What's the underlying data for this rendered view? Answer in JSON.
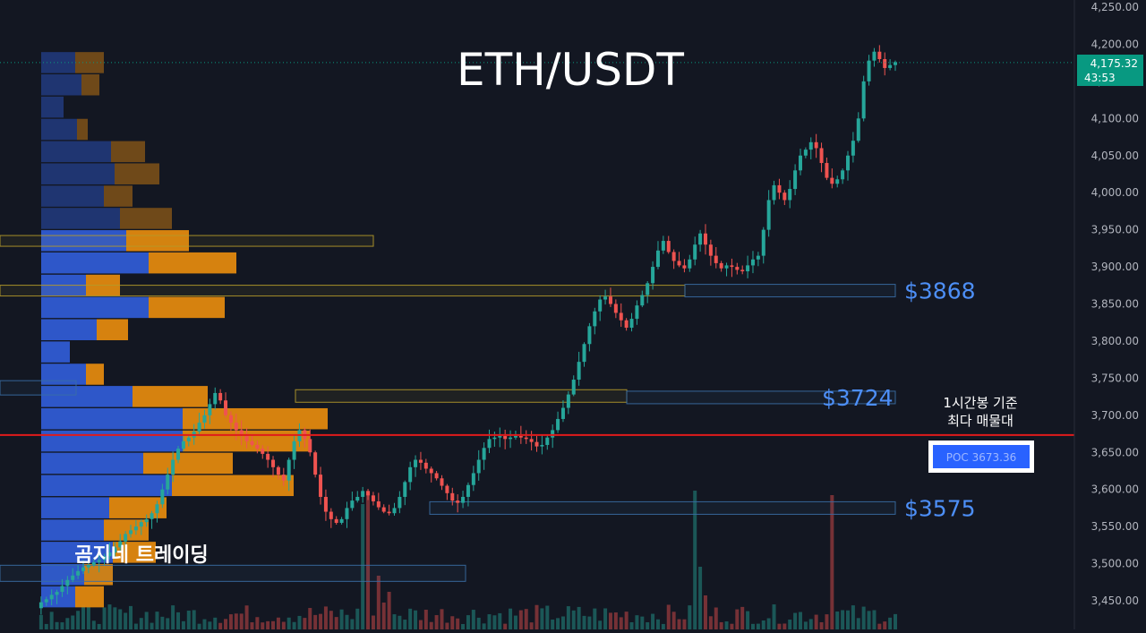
{
  "chart_data": {
    "type": "candlestick",
    "title": "ETH/USDT",
    "watermark": "곰지네 트레이딩",
    "y_ticks": [
      "4,250.00",
      "4,200.00",
      "4,150.00",
      "4,100.00",
      "4,050.00",
      "4,000.00",
      "3,950.00",
      "3,900.00",
      "3,850.00",
      "3,800.00",
      "3,750.00",
      "3,700.00",
      "3,650.00",
      "3,600.00",
      "3,550.00",
      "3,500.00",
      "3,450.00"
    ],
    "y_tick_values": [
      4250,
      4200,
      4150,
      4100,
      4050,
      4000,
      3950,
      3900,
      3850,
      3800,
      3750,
      3700,
      3650,
      3600,
      3550,
      3500,
      3450
    ],
    "ylim": [
      3435,
      4268
    ],
    "current_price": {
      "value": 4175.32,
      "label": "4,175.32",
      "countdown": "43:53"
    },
    "poc": {
      "value": 3673.36,
      "label": "POC  3673.36",
      "note_line1": "1시간봉 기준",
      "note_line2": "최다 매물대"
    },
    "levels": [
      {
        "label": "$3868",
        "value": 3868
      },
      {
        "label": "$3724",
        "value": 3724
      },
      {
        "label": "$3575",
        "value": 3575
      }
    ],
    "price_path": [
      3440,
      3448,
      3452,
      3458,
      3462,
      3470,
      3478,
      3484,
      3490,
      3495,
      3498,
      3502,
      3505,
      3510,
      3515,
      3522,
      3530,
      3540,
      3545,
      3550,
      3556,
      3560,
      3568,
      3580,
      3600,
      3620,
      3640,
      3655,
      3665,
      3670,
      3678,
      3690,
      3700,
      3715,
      3730,
      3720,
      3700,
      3690,
      3680,
      3672,
      3665,
      3660,
      3655,
      3648,
      3640,
      3630,
      3620,
      3612,
      3640,
      3665,
      3680,
      3668,
      3650,
      3620,
      3590,
      3570,
      3560,
      3555,
      3560,
      3575,
      3585,
      3590,
      3598,
      3592,
      3584,
      3576,
      3570,
      3568,
      3575,
      3590,
      3610,
      3630,
      3640,
      3636,
      3628,
      3622,
      3615,
      3605,
      3595,
      3585,
      3582,
      3590,
      3606,
      3622,
      3640,
      3656,
      3668,
      3670,
      3672,
      3668,
      3670,
      3672,
      3670,
      3668,
      3664,
      3658,
      3660,
      3670,
      3680,
      3695,
      3710,
      3728,
      3748,
      3772,
      3796,
      3820,
      3840,
      3856,
      3860,
      3850,
      3838,
      3828,
      3818,
      3830,
      3848,
      3862,
      3878,
      3900,
      3922,
      3935,
      3920,
      3908,
      3902,
      3898,
      3910,
      3930,
      3945,
      3930,
      3915,
      3905,
      3898,
      3902,
      3900,
      3896,
      3894,
      3902,
      3910,
      3915,
      3950,
      3990,
      4010,
      4000,
      3990,
      4005,
      4030,
      4050,
      4058,
      4068,
      4060,
      4040,
      4020,
      4012,
      4018,
      4030,
      4050,
      4070,
      4100,
      4150,
      4178,
      4190,
      4180,
      4168,
      4172,
      4176
    ],
    "volume_profile": [
      {
        "price": 4175,
        "buy": 38,
        "sell": 32
      },
      {
        "price": 4145,
        "buy": 45,
        "sell": 20
      },
      {
        "price": 4115,
        "buy": 25,
        "sell": 0
      },
      {
        "price": 4085,
        "buy": 40,
        "sell": 12
      },
      {
        "price": 4055,
        "buy": 78,
        "sell": 38
      },
      {
        "price": 4025,
        "buy": 82,
        "sell": 50
      },
      {
        "price": 3995,
        "buy": 70,
        "sell": 32
      },
      {
        "price": 3965,
        "buy": 88,
        "sell": 58
      },
      {
        "price": 3935,
        "buy": 95,
        "sell": 70
      },
      {
        "price": 3905,
        "buy": 120,
        "sell": 98
      },
      {
        "price": 3875,
        "buy": 50,
        "sell": 38
      },
      {
        "price": 3845,
        "buy": 120,
        "sell": 85
      },
      {
        "price": 3815,
        "buy": 62,
        "sell": 35
      },
      {
        "price": 3785,
        "buy": 32,
        "sell": 0
      },
      {
        "price": 3755,
        "buy": 50,
        "sell": 20
      },
      {
        "price": 3725,
        "buy": 102,
        "sell": 84
      },
      {
        "price": 3695,
        "buy": 158,
        "sell": 162
      },
      {
        "price": 3665,
        "buy": 158,
        "sell": 142
      },
      {
        "price": 3635,
        "buy": 114,
        "sell": 100
      },
      {
        "price": 3605,
        "buy": 146,
        "sell": 136
      },
      {
        "price": 3575,
        "buy": 76,
        "sell": 64
      },
      {
        "price": 3545,
        "buy": 70,
        "sell": 50
      },
      {
        "price": 3515,
        "buy": 80,
        "sell": 48
      },
      {
        "price": 3485,
        "buy": 48,
        "sell": 32
      },
      {
        "price": 3455,
        "buy": 38,
        "sell": 32
      }
    ],
    "colors": {
      "up": "#26a69a",
      "down": "#ef5350",
      "poc": "#e01b1b",
      "level_text": "#4d8ff7",
      "buy": "#2f5bd3",
      "sell": "#e0880f",
      "price_tag": "#089981",
      "zone_yellow": "#b59a2a",
      "zone_blue": "#3a6ea5"
    }
  }
}
